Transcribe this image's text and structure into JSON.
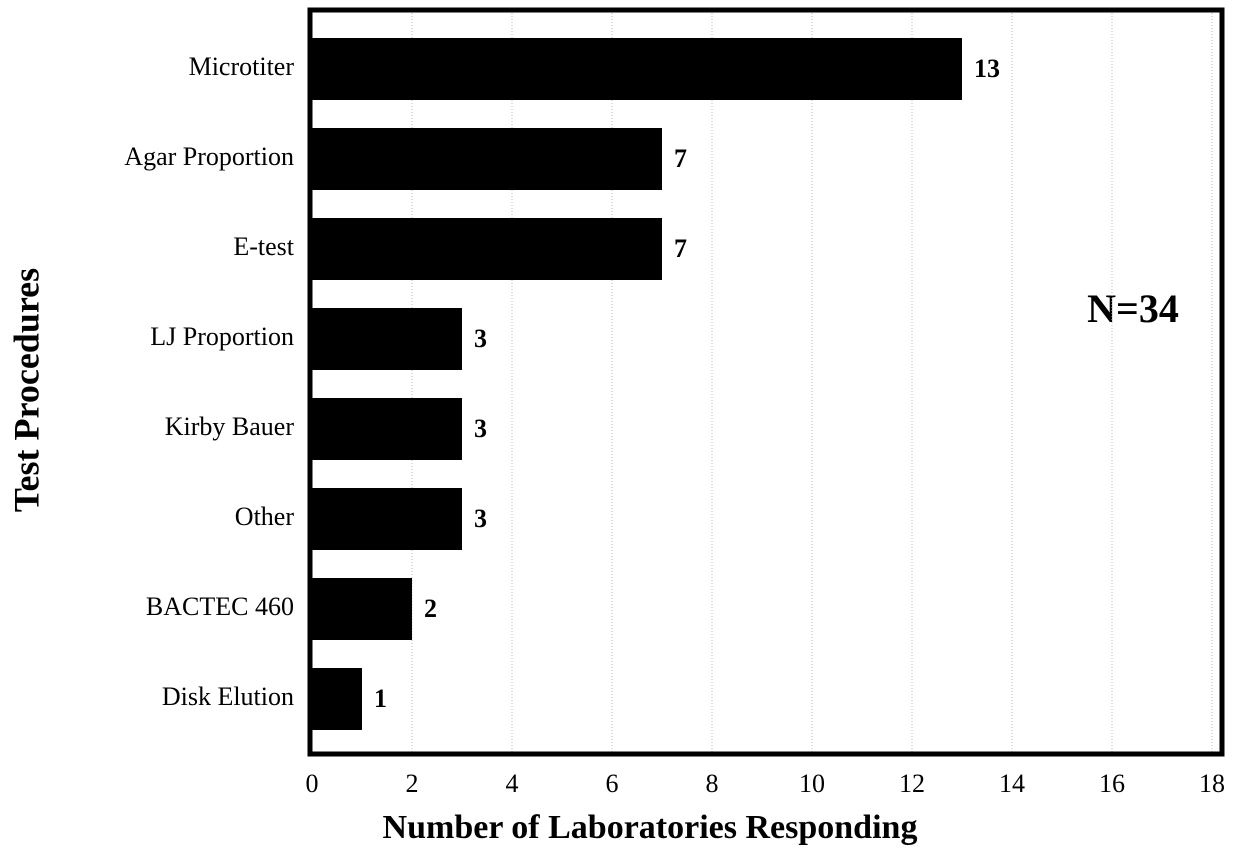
{
  "chart_data": {
    "type": "bar",
    "orientation": "horizontal",
    "x_label": "Number of Laboratories Responding",
    "y_label": "Test Procedures",
    "annotation": "N=34",
    "categories": [
      "Microtiter",
      "Agar Proportion",
      "E-test",
      "LJ Proportion",
      "Kirby Bauer",
      "Other",
      "BACTEC 460",
      "Disk Elution"
    ],
    "values": [
      13,
      7,
      7,
      3,
      3,
      3,
      2,
      1
    ],
    "color": "#000000",
    "xlim": [
      0,
      18
    ],
    "xticks": [
      0,
      2,
      4,
      6,
      8,
      10,
      12,
      14,
      16,
      18
    ],
    "grid": true
  }
}
